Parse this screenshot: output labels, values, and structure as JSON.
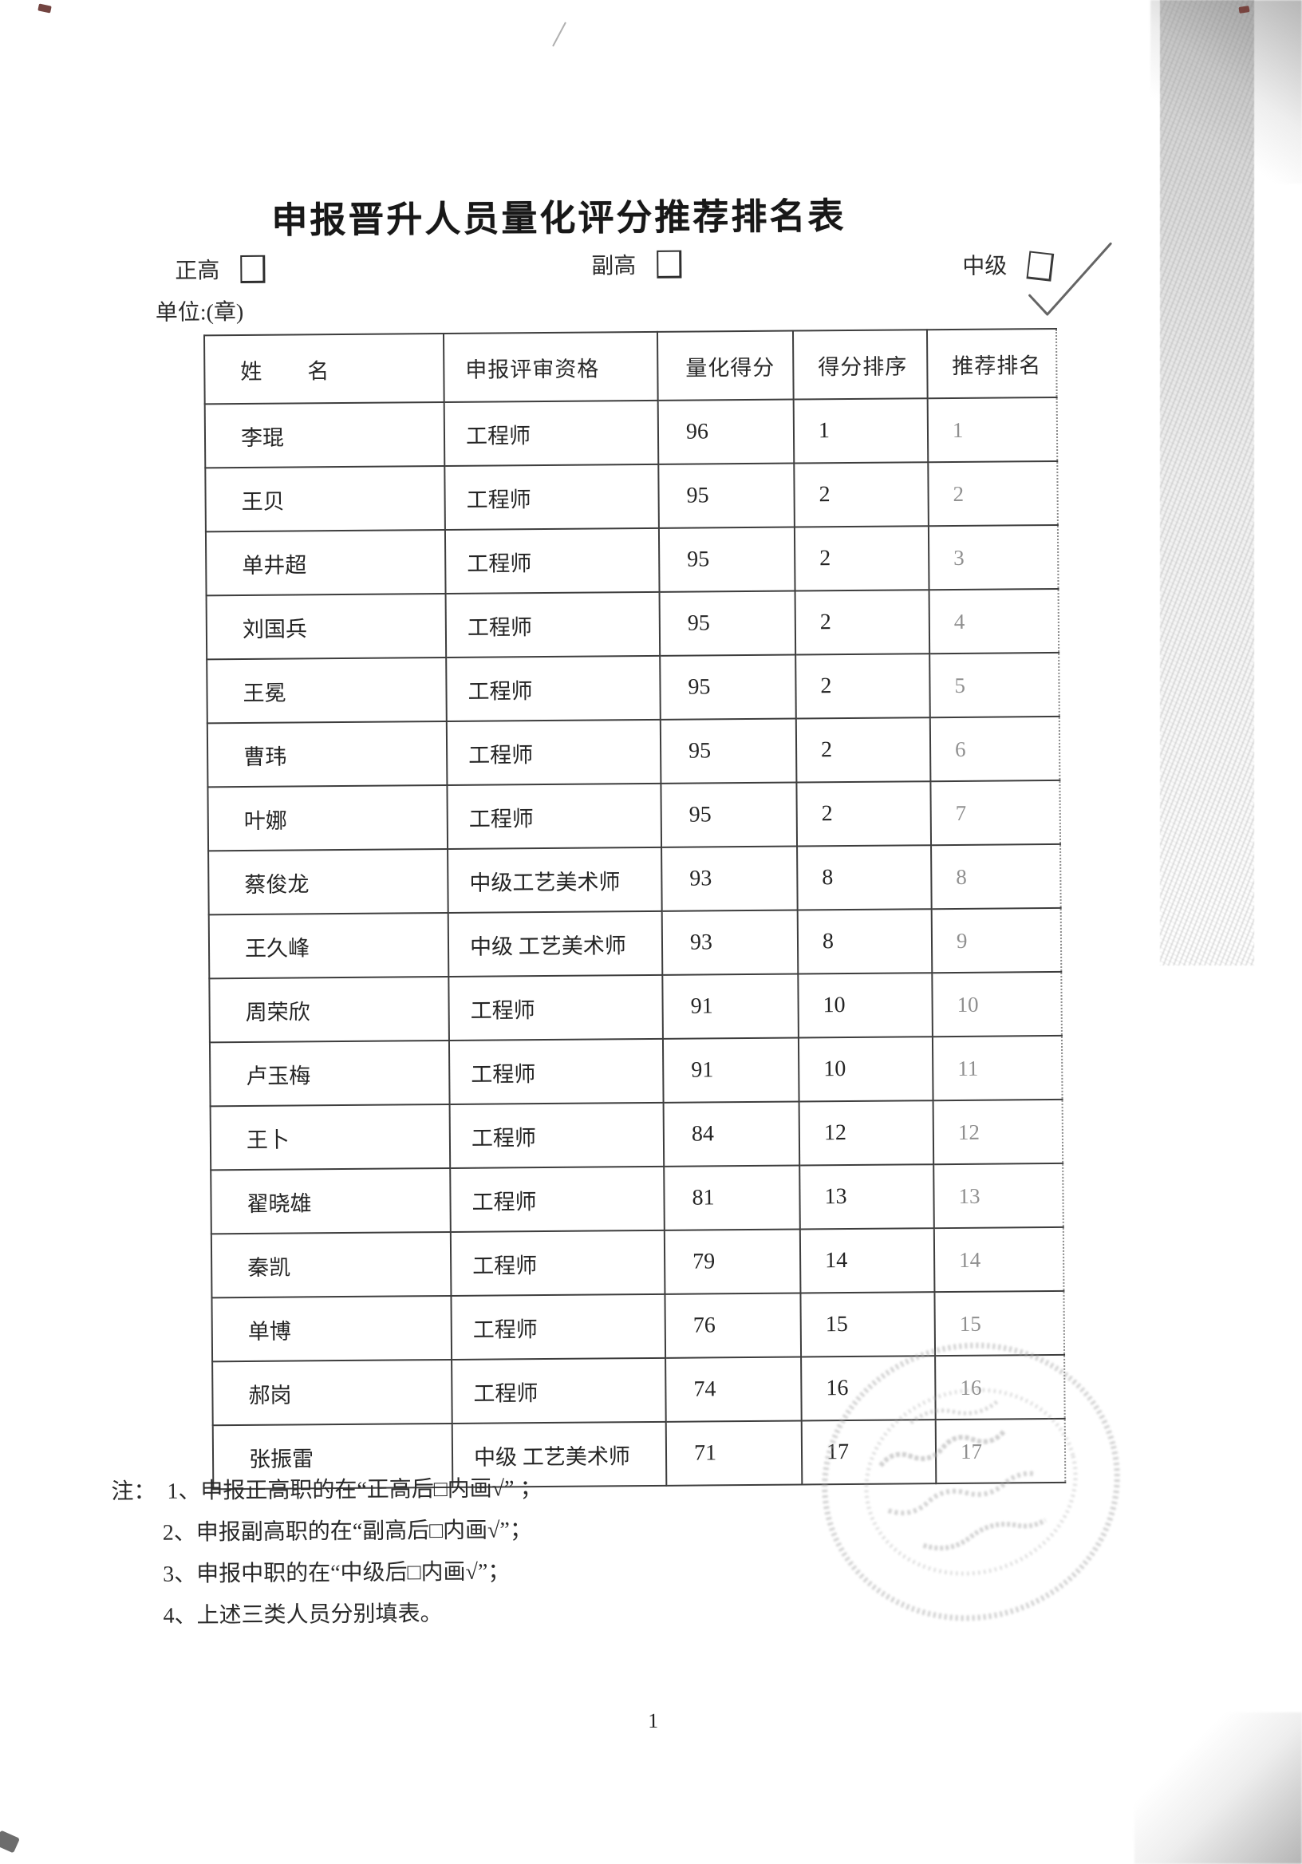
{
  "title": "申报晋升人员量化评分推荐排名表",
  "levels": [
    {
      "label": "正高",
      "checked": false
    },
    {
      "label": "副高",
      "checked": false
    },
    {
      "label": "中级",
      "checked": true
    }
  ],
  "unit_label": "单位:(章)",
  "table": {
    "headers": [
      "姓　　名",
      "申报评审资格",
      "量化得分",
      "得分排序",
      "推荐排名"
    ],
    "rows": [
      [
        "李琨",
        "工程师",
        "96",
        "1",
        "1"
      ],
      [
        "王贝",
        "工程师",
        "95",
        "2",
        "2"
      ],
      [
        "单井超",
        "工程师",
        "95",
        "2",
        "3"
      ],
      [
        "刘国兵",
        "工程师",
        "95",
        "2",
        "4"
      ],
      [
        "王冕",
        "工程师",
        "95",
        "2",
        "5"
      ],
      [
        "曹玮",
        "工程师",
        "95",
        "2",
        "6"
      ],
      [
        "叶娜",
        "工程师",
        "95",
        "2",
        "7"
      ],
      [
        "蔡俊龙",
        "中级工艺美术师",
        "93",
        "8",
        "8"
      ],
      [
        "王久峰",
        "中级 工艺美术师",
        "93",
        "8",
        "9"
      ],
      [
        "周荣欣",
        "工程师",
        "91",
        "10",
        "10"
      ],
      [
        "卢玉梅",
        "工程师",
        "91",
        "10",
        "11"
      ],
      [
        "王卜",
        "工程师",
        "84",
        "12",
        "12"
      ],
      [
        "翟晓雄",
        "工程师",
        "81",
        "13",
        "13"
      ],
      [
        "秦凯",
        "工程师",
        "79",
        "14",
        "14"
      ],
      [
        "单博",
        "工程师",
        "76",
        "15",
        "15"
      ],
      [
        "郝岗",
        "工程师",
        "74",
        "16",
        "16"
      ],
      [
        "张振雷",
        "中级 工艺美术师",
        "71",
        "17",
        "17"
      ]
    ]
  },
  "notes": {
    "prefix": "注：",
    "items": [
      "1、申报正高职的在“正高后□内画√” ；",
      "2、申报副高职的在“副高后□内画√”；",
      "3、申报中职的在“中级后□内画√”；",
      "4、上述三类人员分别填表。"
    ]
  },
  "page_number": "1",
  "stamp_color": "#b0b0b0",
  "check_color": "#4a4a4a"
}
